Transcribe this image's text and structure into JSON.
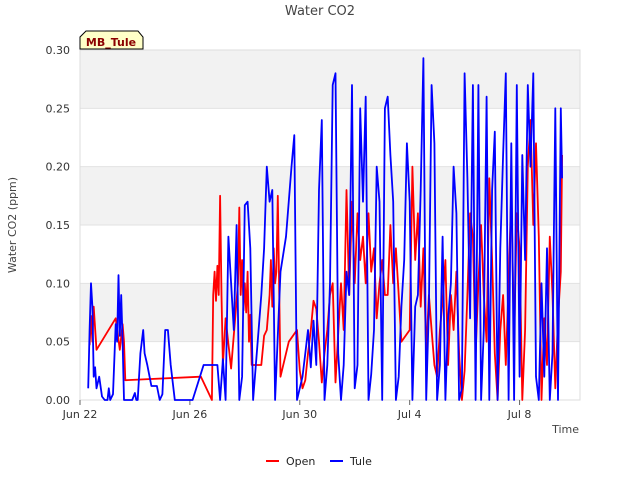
{
  "chart_data": {
    "type": "line",
    "title": "Water CO2",
    "xlabel": "Time",
    "ylabel": "Water CO2 (ppm)",
    "ylim": [
      0,
      0.3
    ],
    "xlim": [
      0,
      18.2
    ],
    "x_unit": "days since Jun 22",
    "yticks": [
      {
        "v": 0.0,
        "label": "0.00"
      },
      {
        "v": 0.05,
        "label": "0.05"
      },
      {
        "v": 0.1,
        "label": "0.10"
      },
      {
        "v": 0.15,
        "label": "0.15"
      },
      {
        "v": 0.2,
        "label": "0.20"
      },
      {
        "v": 0.25,
        "label": "0.25"
      },
      {
        "v": 0.3,
        "label": "0.30"
      }
    ],
    "xticks": [
      {
        "v": 0,
        "label": "Jun 22"
      },
      {
        "v": 4,
        "label": "Jun 26"
      },
      {
        "v": 8,
        "label": "Jun 30"
      },
      {
        "v": 12,
        "label": "Jul 4"
      },
      {
        "v": 16,
        "label": "Jul 8"
      }
    ],
    "site_label": "MB_Tule",
    "series": [
      {
        "name": "Open",
        "color": "#ff0000",
        "points": [
          [
            0.35,
            0.047
          ],
          [
            0.4,
            0.072
          ],
          [
            0.45,
            0.05
          ],
          [
            0.5,
            0.08
          ],
          [
            0.6,
            0.043
          ],
          [
            1.3,
            0.07
          ],
          [
            1.45,
            0.043
          ],
          [
            1.55,
            0.065
          ],
          [
            1.6,
            0.05
          ],
          [
            1.65,
            0.017
          ],
          [
            4.4,
            0.02
          ],
          [
            4.8,
            0.0
          ],
          [
            4.85,
            0.09
          ],
          [
            4.9,
            0.11
          ],
          [
            4.95,
            0.085
          ],
          [
            5.0,
            0.115
          ],
          [
            5.05,
            0.09
          ],
          [
            5.1,
            0.175
          ],
          [
            5.15,
            0.09
          ],
          [
            5.2,
            0.03
          ],
          [
            5.3,
            0.07
          ],
          [
            5.5,
            0.027
          ],
          [
            5.75,
            0.1
          ],
          [
            5.8,
            0.165
          ],
          [
            5.85,
            0.09
          ],
          [
            5.9,
            0.12
          ],
          [
            5.95,
            0.077
          ],
          [
            6.0,
            0.1
          ],
          [
            6.05,
            0.075
          ],
          [
            6.1,
            0.11
          ],
          [
            6.15,
            0.05
          ],
          [
            6.2,
            0.073
          ],
          [
            6.25,
            0.03
          ],
          [
            6.6,
            0.03
          ],
          [
            6.7,
            0.055
          ],
          [
            6.8,
            0.06
          ],
          [
            6.9,
            0.09
          ],
          [
            6.95,
            0.12
          ],
          [
            7.0,
            0.08
          ],
          [
            7.05,
            0.13
          ],
          [
            7.1,
            0.1
          ],
          [
            7.15,
            0.11
          ],
          [
            7.2,
            0.175
          ],
          [
            7.3,
            0.02
          ],
          [
            7.6,
            0.05
          ],
          [
            7.9,
            0.06
          ],
          [
            8.0,
            0.025
          ],
          [
            8.1,
            0.01
          ],
          [
            8.2,
            0.017
          ],
          [
            8.3,
            0.04
          ],
          [
            8.4,
            0.06
          ],
          [
            8.5,
            0.085
          ],
          [
            8.6,
            0.078
          ],
          [
            8.7,
            0.05
          ],
          [
            8.8,
            0.015
          ],
          [
            8.9,
            0.04
          ],
          [
            9.0,
            0.06
          ],
          [
            9.1,
            0.09
          ],
          [
            9.2,
            0.1
          ],
          [
            9.3,
            0.015
          ],
          [
            9.5,
            0.1
          ],
          [
            9.6,
            0.06
          ],
          [
            9.7,
            0.18
          ],
          [
            9.8,
            0.09
          ],
          [
            9.9,
            0.17
          ],
          [
            10.0,
            0.1
          ],
          [
            10.1,
            0.16
          ],
          [
            10.2,
            0.12
          ],
          [
            10.3,
            0.14
          ],
          [
            10.4,
            0.1
          ],
          [
            10.5,
            0.16
          ],
          [
            10.6,
            0.11
          ],
          [
            10.7,
            0.13
          ],
          [
            10.8,
            0.07
          ],
          [
            10.9,
            0.1
          ],
          [
            11.0,
            0.12
          ],
          [
            11.1,
            0.09
          ],
          [
            11.2,
            0.09
          ],
          [
            11.3,
            0.15
          ],
          [
            11.4,
            0.1
          ],
          [
            11.5,
            0.13
          ],
          [
            11.6,
            0.09
          ],
          [
            11.7,
            0.05
          ],
          [
            12.0,
            0.06
          ],
          [
            12.1,
            0.2
          ],
          [
            12.2,
            0.12
          ],
          [
            12.3,
            0.16
          ],
          [
            12.4,
            0.08
          ],
          [
            12.5,
            0.13
          ],
          [
            12.6,
            0.04
          ],
          [
            12.7,
            0.09
          ],
          [
            12.8,
            0.06
          ],
          [
            12.9,
            0.03
          ],
          [
            13.0,
            0.02
          ],
          [
            13.1,
            0.06
          ],
          [
            13.2,
            0.085
          ],
          [
            13.3,
            0.12
          ],
          [
            13.4,
            0.03
          ],
          [
            13.5,
            0.09
          ],
          [
            13.6,
            0.06
          ],
          [
            13.7,
            0.11
          ],
          [
            13.8,
            0.04
          ],
          [
            13.9,
            0.0
          ],
          [
            14.0,
            0.025
          ],
          [
            14.1,
            0.09
          ],
          [
            14.2,
            0.16
          ],
          [
            14.3,
            0.14
          ],
          [
            14.4,
            0.04
          ],
          [
            14.5,
            0.1
          ],
          [
            14.6,
            0.15
          ],
          [
            14.7,
            0.09
          ],
          [
            14.8,
            0.05
          ],
          [
            14.9,
            0.19
          ],
          [
            15.0,
            0.12
          ],
          [
            15.1,
            0.04
          ],
          [
            15.2,
            0.0
          ],
          [
            15.3,
            0.06
          ],
          [
            15.4,
            0.09
          ],
          [
            15.5,
            0.03
          ],
          [
            15.6,
            0.1
          ],
          [
            15.7,
            0.18
          ],
          [
            15.8,
            0.05
          ],
          [
            15.9,
            0.16
          ],
          [
            16.0,
            0.13
          ],
          [
            16.1,
            0.0
          ],
          [
            16.2,
            0.06
          ],
          [
            16.3,
            0.2
          ],
          [
            16.4,
            0.24
          ],
          [
            16.5,
            0.15
          ],
          [
            16.6,
            0.22
          ],
          [
            16.7,
            0.14
          ],
          [
            16.8,
            0.0
          ],
          [
            16.9,
            0.07
          ],
          [
            17.0,
            0.03
          ],
          [
            17.1,
            0.14
          ],
          [
            17.2,
            0.09
          ],
          [
            17.3,
            0.01
          ],
          [
            17.4,
            0.07
          ],
          [
            17.5,
            0.11
          ],
          [
            17.55,
            0.21
          ]
        ]
      },
      {
        "name": "Tule",
        "color": "#0000ff",
        "points": [
          [
            0.3,
            0.01
          ],
          [
            0.35,
            0.06
          ],
          [
            0.4,
            0.1
          ],
          [
            0.45,
            0.08
          ],
          [
            0.5,
            0.02
          ],
          [
            0.55,
            0.028
          ],
          [
            0.6,
            0.01
          ],
          [
            0.7,
            0.02
          ],
          [
            0.8,
            0.003
          ],
          [
            0.9,
            0.0
          ],
          [
            1.0,
            0.0
          ],
          [
            1.05,
            0.01
          ],
          [
            1.1,
            0.0
          ],
          [
            1.2,
            0.005
          ],
          [
            1.3,
            0.065
          ],
          [
            1.35,
            0.05
          ],
          [
            1.4,
            0.107
          ],
          [
            1.45,
            0.055
          ],
          [
            1.5,
            0.09
          ],
          [
            1.55,
            0.05
          ],
          [
            1.6,
            0.0
          ],
          [
            1.9,
            0.0
          ],
          [
            2.0,
            0.006
          ],
          [
            2.05,
            0.0
          ],
          [
            2.1,
            0.0
          ],
          [
            2.2,
            0.04
          ],
          [
            2.3,
            0.06
          ],
          [
            2.35,
            0.04
          ],
          [
            2.45,
            0.03
          ],
          [
            2.6,
            0.012
          ],
          [
            2.8,
            0.012
          ],
          [
            2.9,
            0.0
          ],
          [
            3.0,
            0.005
          ],
          [
            3.1,
            0.06
          ],
          [
            3.2,
            0.06
          ],
          [
            3.3,
            0.03
          ],
          [
            3.45,
            0.0
          ],
          [
            4.1,
            0.0
          ],
          [
            4.5,
            0.03
          ],
          [
            5.0,
            0.03
          ],
          [
            5.1,
            0.0
          ],
          [
            5.2,
            0.035
          ],
          [
            5.3,
            0.0
          ],
          [
            5.4,
            0.14
          ],
          [
            5.5,
            0.1
          ],
          [
            5.6,
            0.06
          ],
          [
            5.7,
            0.15
          ],
          [
            5.8,
            0.0
          ],
          [
            5.9,
            0.02
          ],
          [
            6.0,
            0.167
          ],
          [
            6.1,
            0.17
          ],
          [
            6.2,
            0.13
          ],
          [
            6.3,
            0.0
          ],
          [
            6.5,
            0.06
          ],
          [
            6.6,
            0.09
          ],
          [
            6.7,
            0.13
          ],
          [
            6.8,
            0.2
          ],
          [
            6.9,
            0.17
          ],
          [
            7.0,
            0.18
          ],
          [
            7.1,
            0.0
          ],
          [
            7.3,
            0.11
          ],
          [
            7.5,
            0.14
          ],
          [
            7.7,
            0.2
          ],
          [
            7.8,
            0.227
          ],
          [
            7.9,
            0.0
          ],
          [
            8.1,
            0.02
          ],
          [
            8.2,
            0.04
          ],
          [
            8.3,
            0.06
          ],
          [
            8.4,
            0.028
          ],
          [
            8.5,
            0.068
          ],
          [
            8.6,
            0.03
          ],
          [
            8.7,
            0.18
          ],
          [
            8.8,
            0.24
          ],
          [
            8.9,
            0.0
          ],
          [
            9.0,
            0.03
          ],
          [
            9.1,
            0.1
          ],
          [
            9.2,
            0.27
          ],
          [
            9.3,
            0.28
          ],
          [
            9.4,
            0.04
          ],
          [
            9.5,
            0.0
          ],
          [
            9.6,
            0.03
          ],
          [
            9.7,
            0.11
          ],
          [
            9.8,
            0.09
          ],
          [
            9.9,
            0.27
          ],
          [
            10.0,
            0.01
          ],
          [
            10.1,
            0.03
          ],
          [
            10.2,
            0.25
          ],
          [
            10.3,
            0.17
          ],
          [
            10.4,
            0.26
          ],
          [
            10.5,
            0.0
          ],
          [
            10.6,
            0.022
          ],
          [
            10.7,
            0.06
          ],
          [
            10.8,
            0.2
          ],
          [
            10.9,
            0.17
          ],
          [
            11.0,
            0.0
          ],
          [
            11.1,
            0.25
          ],
          [
            11.2,
            0.26
          ],
          [
            11.3,
            0.21
          ],
          [
            11.4,
            0.17
          ],
          [
            11.5,
            0.0
          ],
          [
            11.6,
            0.02
          ],
          [
            11.7,
            0.08
          ],
          [
            11.8,
            0.12
          ],
          [
            11.9,
            0.22
          ],
          [
            12.0,
            0.17
          ],
          [
            12.1,
            0.0
          ],
          [
            12.2,
            0.08
          ],
          [
            12.3,
            0.09
          ],
          [
            12.4,
            0.18
          ],
          [
            12.5,
            0.293
          ],
          [
            12.6,
            0.0
          ],
          [
            12.7,
            0.08
          ],
          [
            12.8,
            0.27
          ],
          [
            12.9,
            0.22
          ],
          [
            13.0,
            0.0
          ],
          [
            13.1,
            0.03
          ],
          [
            13.2,
            0.14
          ],
          [
            13.3,
            0.0
          ],
          [
            13.4,
            0.07
          ],
          [
            13.5,
            0.1
          ],
          [
            13.6,
            0.2
          ],
          [
            13.7,
            0.16
          ],
          [
            13.8,
            0.0
          ],
          [
            13.9,
            0.01
          ],
          [
            14.0,
            0.28
          ],
          [
            14.1,
            0.19
          ],
          [
            14.2,
            0.07
          ],
          [
            14.3,
            0.27
          ],
          [
            14.4,
            0.0
          ],
          [
            14.5,
            0.27
          ],
          [
            14.6,
            0.0
          ],
          [
            14.7,
            0.06
          ],
          [
            14.8,
            0.26
          ],
          [
            14.9,
            0.0
          ],
          [
            15.0,
            0.18
          ],
          [
            15.1,
            0.23
          ],
          [
            15.2,
            0.0
          ],
          [
            15.3,
            0.13
          ],
          [
            15.4,
            0.21
          ],
          [
            15.5,
            0.28
          ],
          [
            15.6,
            0.0
          ],
          [
            15.7,
            0.22
          ],
          [
            15.8,
            0.0
          ],
          [
            15.9,
            0.27
          ],
          [
            16.0,
            0.02
          ],
          [
            16.1,
            0.21
          ],
          [
            16.2,
            0.12
          ],
          [
            16.3,
            0.27
          ],
          [
            16.4,
            0.2
          ],
          [
            16.5,
            0.28
          ],
          [
            16.6,
            0.02
          ],
          [
            16.7,
            0.0
          ],
          [
            16.8,
            0.1
          ],
          [
            16.9,
            0.02
          ],
          [
            17.0,
            0.13
          ],
          [
            17.1,
            0.0
          ],
          [
            17.2,
            0.04
          ],
          [
            17.3,
            0.25
          ],
          [
            17.4,
            0.0
          ],
          [
            17.5,
            0.25
          ],
          [
            17.55,
            0.19
          ]
        ]
      }
    ]
  }
}
